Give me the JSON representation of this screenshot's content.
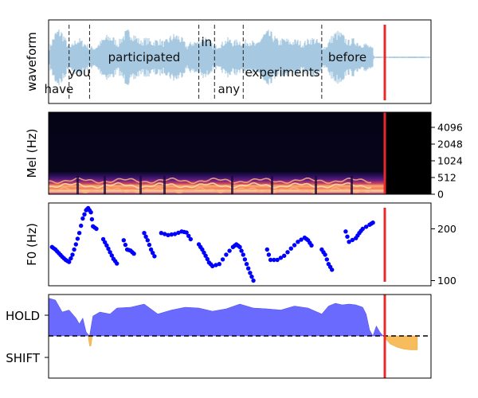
{
  "chart_data": [
    {
      "type": "area",
      "panel": "waveform",
      "ylabel": "waveform",
      "words": [
        {
          "text": "have",
          "start": 0.0,
          "end": 0.3
        },
        {
          "text": "you",
          "start": 0.3,
          "end": 0.6
        },
        {
          "text": "participated",
          "start": 0.6,
          "end": 2.2
        },
        {
          "text": "in",
          "start": 2.2,
          "end": 2.43
        },
        {
          "text": "any",
          "start": 2.43,
          "end": 2.85
        },
        {
          "text": "experiments",
          "start": 2.85,
          "end": 4.0
        },
        {
          "text": "before",
          "start": 4.0,
          "end": 4.75
        }
      ],
      "boundaries": [
        0.3,
        0.6,
        2.2,
        2.43,
        2.85,
        4.0
      ],
      "xlim": [
        0,
        5.6
      ],
      "cursor": 4.75,
      "color": "#a6c8e0",
      "cursor_color": "#e8292b"
    },
    {
      "type": "heatmap",
      "panel": "mel",
      "ylabel": "Mel (Hz)",
      "yticks": [
        "0",
        "512",
        "1024",
        "2048",
        "4096"
      ],
      "colormap": "magma",
      "cursor": 4.75,
      "xlim": [
        0,
        5.6
      ]
    },
    {
      "type": "scatter",
      "panel": "f0",
      "ylabel": "F0 (Hz)",
      "yticks": [
        100,
        200
      ],
      "ylim": [
        90,
        250
      ],
      "xlim": [
        0,
        5.6
      ],
      "cursor": 4.75,
      "color": "#0000ff",
      "segments": [
        [
          [
            0.05,
            165
          ],
          [
            0.1,
            160
          ],
          [
            0.15,
            153
          ],
          [
            0.2,
            146
          ],
          [
            0.25,
            140
          ],
          [
            0.3,
            136
          ],
          [
            0.35,
            150
          ],
          [
            0.4,
            170
          ],
          [
            0.45,
            192
          ],
          [
            0.5,
            220
          ],
          [
            0.55,
            236
          ],
          [
            0.58,
            240
          ],
          [
            0.62,
            232
          ],
          [
            0.65,
            205
          ],
          [
            0.7,
            200
          ]
        ],
        [
          [
            0.8,
            180
          ],
          [
            0.85,
            168
          ],
          [
            0.9,
            155
          ],
          [
            0.95,
            142
          ],
          [
            1.0,
            133
          ]
        ],
        [
          [
            1.1,
            178
          ],
          [
            1.15,
            160
          ],
          [
            1.2,
            158
          ],
          [
            1.25,
            152
          ]
        ],
        [
          [
            1.4,
            192
          ],
          [
            1.45,
            178
          ],
          [
            1.5,
            160
          ],
          [
            1.55,
            147
          ]
        ],
        [
          [
            1.65,
            192
          ],
          [
            1.75,
            188
          ],
          [
            1.85,
            190
          ],
          [
            1.95,
            195
          ],
          [
            2.02,
            193
          ],
          [
            2.08,
            180
          ]
        ],
        [
          [
            2.2,
            170
          ],
          [
            2.25,
            160
          ],
          [
            2.3,
            148
          ],
          [
            2.35,
            135
          ],
          [
            2.4,
            128
          ],
          [
            2.5,
            132
          ],
          [
            2.6,
            150
          ],
          [
            2.7,
            165
          ],
          [
            2.75,
            170
          ],
          [
            2.8,
            165
          ],
          [
            2.85,
            150
          ],
          [
            2.9,
            132
          ],
          [
            2.95,
            115
          ],
          [
            3.0,
            100
          ]
        ],
        [
          [
            3.2,
            160
          ],
          [
            3.25,
            140
          ],
          [
            3.35,
            140
          ],
          [
            3.45,
            148
          ],
          [
            3.55,
            162
          ],
          [
            3.65,
            175
          ],
          [
            3.75,
            183
          ],
          [
            3.8,
            178
          ],
          [
            3.85,
            168
          ]
        ],
        [
          [
            4.0,
            160
          ],
          [
            4.05,
            150
          ],
          [
            4.1,
            132
          ],
          [
            4.15,
            121
          ]
        ],
        [
          [
            4.35,
            195
          ],
          [
            4.4,
            175
          ],
          [
            4.5,
            182
          ],
          [
            4.55,
            192
          ],
          [
            4.6,
            200
          ],
          [
            4.7,
            208
          ],
          [
            4.75,
            212
          ]
        ]
      ]
    },
    {
      "type": "area",
      "panel": "turn",
      "yticklabels": [
        "HOLD",
        "SHIFT"
      ],
      "xlim": [
        0,
        5.6
      ],
      "cursor": 4.75,
      "hold_color": "#6a6aff",
      "shift_color": "#f7bc5c",
      "hold": [
        [
          0,
          0.95
        ],
        [
          0.1,
          0.9
        ],
        [
          0.2,
          0.6
        ],
        [
          0.3,
          0.65
        ],
        [
          0.35,
          0.55
        ],
        [
          0.4,
          0.45
        ],
        [
          0.45,
          0.3
        ],
        [
          0.5,
          0.45
        ],
        [
          0.55,
          0.1
        ],
        [
          0.6,
          0.0
        ],
        [
          0.65,
          0.5
        ],
        [
          0.75,
          0.6
        ],
        [
          0.9,
          0.55
        ],
        [
          1.0,
          0.7
        ],
        [
          1.2,
          0.72
        ],
        [
          1.4,
          0.8
        ],
        [
          1.6,
          0.55
        ],
        [
          1.8,
          0.65
        ],
        [
          2.0,
          0.72
        ],
        [
          2.2,
          0.7
        ],
        [
          2.4,
          0.62
        ],
        [
          2.6,
          0.68
        ],
        [
          2.8,
          0.8
        ],
        [
          3.0,
          0.7
        ],
        [
          3.2,
          0.68
        ],
        [
          3.4,
          0.65
        ],
        [
          3.6,
          0.75
        ],
        [
          3.8,
          0.7
        ],
        [
          4.0,
          0.55
        ],
        [
          4.1,
          0.75
        ],
        [
          4.2,
          0.82
        ],
        [
          4.3,
          0.78
        ],
        [
          4.4,
          0.8
        ],
        [
          4.5,
          0.78
        ],
        [
          4.6,
          0.72
        ],
        [
          4.65,
          0.55
        ],
        [
          4.7,
          0.15
        ],
        [
          4.75,
          0.0
        ],
        [
          4.8,
          0.25
        ],
        [
          4.85,
          0.1
        ],
        [
          4.9,
          0.0
        ]
      ],
      "shift": [
        [
          0.58,
          0.0
        ],
        [
          0.6,
          -0.25
        ],
        [
          0.62,
          -0.25
        ],
        [
          0.64,
          0.0
        ],
        [
          4.9,
          0.0
        ],
        [
          5.0,
          -0.2
        ],
        [
          5.1,
          -0.28
        ],
        [
          5.2,
          -0.33
        ],
        [
          5.3,
          -0.35
        ],
        [
          5.4,
          -0.35
        ]
      ]
    }
  ]
}
